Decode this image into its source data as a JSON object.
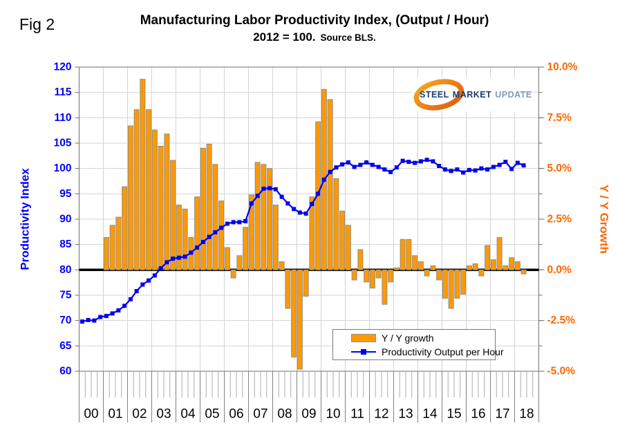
{
  "fig_label": "Fig 2",
  "title": {
    "line1": "Manufacturing Labor Productivity Index, (Output / Hour)",
    "line2_main": "2012 = 100.",
    "line2_source": "Source BLS."
  },
  "logo": {
    "word1": "STEEL",
    "word2": "MARKET",
    "word3": "UPDATE"
  },
  "legend": [
    {
      "label": "Y / Y growth",
      "type": "bar"
    },
    {
      "label": "Productivity Output per Hour",
      "type": "line"
    }
  ],
  "chart_data": {
    "type": "combo-bar-line",
    "frequency": "quarterly",
    "x_axis": {
      "year_labels": [
        "00",
        "01",
        "02",
        "03",
        "04",
        "05",
        "06",
        "07",
        "08",
        "09",
        "10",
        "11",
        "12",
        "13",
        "14",
        "15",
        "16",
        "17",
        "18"
      ]
    },
    "left_axis": {
      "title": "Productivity Index",
      "min": 60,
      "max": 120,
      "tick_step": 5,
      "tick_values": [
        60,
        65,
        70,
        75,
        80,
        85,
        90,
        95,
        100,
        105,
        110,
        115,
        120
      ],
      "tick_labels": [
        "60",
        "65",
        "70",
        "75",
        "80",
        "85",
        "90",
        "95",
        "100",
        "105",
        "110",
        "115",
        "120"
      ],
      "color": "#0000FF"
    },
    "right_axis": {
      "title": "Y / Y Growth",
      "min": -5,
      "max": 10,
      "tick_step": 2.5,
      "minor_tick_step": 1.25,
      "tick_values": [
        10,
        7.5,
        5,
        2.5,
        0,
        -2.5,
        -5
      ],
      "tick_labels": [
        "10.0%",
        "7.5%",
        "5.0%",
        "2.5%",
        "0.0%",
        "-2.5%",
        "-5.0%"
      ],
      "color": "#FF6600"
    },
    "baseline": {
      "right_value": 0,
      "left_value": 80
    },
    "series": [
      {
        "name": "Y / Y growth",
        "type": "bar",
        "axis": "right",
        "color": "#FF9900",
        "border_color": "#8f8f8f",
        "first_period": "2001Q1",
        "quarter_offset": 4,
        "values": [
          1.6,
          2.2,
          2.6,
          4.1,
          7.1,
          7.9,
          9.4,
          7.9,
          6.9,
          6.1,
          6.7,
          5.4,
          3.2,
          3.0,
          1.6,
          3.6,
          6.0,
          6.2,
          5.2,
          3.4,
          1.1,
          -0.4,
          0.7,
          2.1,
          3.7,
          5.3,
          5.2,
          5.0,
          3.2,
          0.4,
          -1.9,
          -4.3,
          -4.9,
          -1.3,
          3.6,
          7.3,
          8.9,
          8.4,
          4.5,
          2.9,
          2.2,
          -0.5,
          1.0,
          -0.6,
          -0.9,
          -0.4,
          -1.7,
          -0.6,
          0.1,
          1.5,
          1.5,
          0.7,
          0.4,
          -0.3,
          0.2,
          -0.5,
          -1.4,
          -1.9,
          -1.4,
          -1.2,
          0.2,
          0.3,
          -0.3,
          1.2,
          0.5,
          1.6,
          0.2,
          0.6,
          0.4,
          -0.2
        ]
      },
      {
        "name": "Productivity Output per Hour",
        "type": "line",
        "axis": "left",
        "color": "#0000EE",
        "marker": "square",
        "first_period": "2000Q1",
        "quarter_offset": 0,
        "values": [
          69.8,
          70.1,
          70.0,
          70.7,
          70.9,
          71.4,
          72.0,
          72.9,
          74.2,
          75.8,
          77.1,
          77.9,
          78.9,
          80.3,
          81.5,
          82.2,
          82.4,
          82.6,
          83.4,
          84.4,
          85.5,
          86.5,
          87.4,
          88.3,
          89.1,
          89.4,
          89.4,
          89.6,
          93.1,
          94.6,
          96.0,
          96.1,
          95.9,
          94.4,
          93.1,
          92.0,
          91.3,
          91.1,
          93.0,
          95.0,
          97.8,
          99.3,
          100.2,
          100.8,
          101.2,
          100.3,
          100.7,
          101.2,
          100.7,
          100.3,
          99.8,
          99.3,
          100.2,
          101.5,
          101.3,
          101.1,
          101.4,
          101.7,
          101.4,
          100.5,
          99.8,
          99.5,
          99.8,
          99.2,
          99.7,
          99.6,
          100.0,
          99.8,
          100.3,
          100.7,
          101.3,
          99.9,
          101.1,
          100.6
        ]
      }
    ],
    "colors": {
      "grid": "#D3D3D3",
      "frame": "#6E6E6E",
      "zero_line": "#000000",
      "quarter_tick": "#ABABAB",
      "year_tick": "#808080",
      "x_label": "#000000"
    },
    "legend_position": "inside-bottom-center"
  }
}
